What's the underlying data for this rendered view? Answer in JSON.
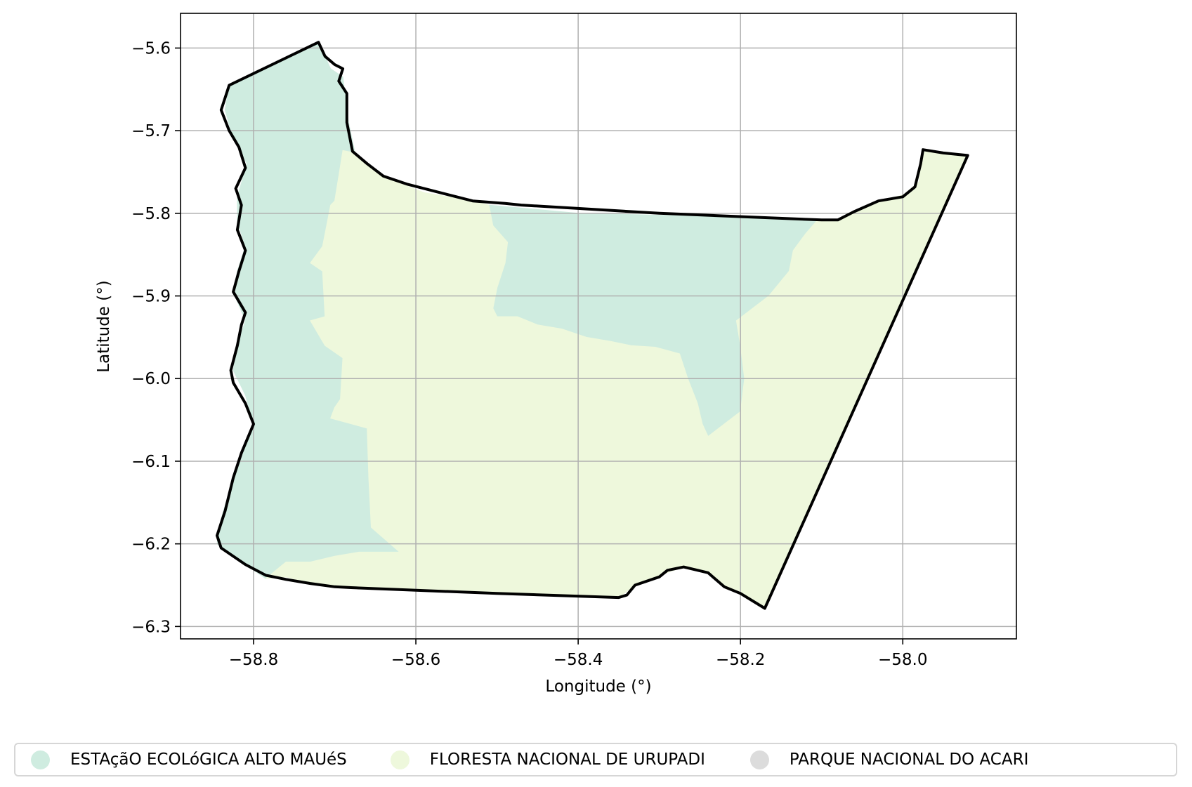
{
  "chart_data": {
    "type": "map",
    "xlabel": "Longitude (°)",
    "ylabel": "Latitude (°)",
    "xlim": [
      -58.89,
      -57.86
    ],
    "ylim": [
      -6.315,
      -5.558
    ],
    "x_ticks": [
      -58.8,
      -58.6,
      -58.4,
      -58.2,
      -58.0
    ],
    "x_tick_labels": [
      "−58.8",
      "−58.6",
      "−58.4",
      "−58.2",
      "−58.0"
    ],
    "y_ticks": [
      -5.6,
      -5.7,
      -5.8,
      -5.9,
      -6.0,
      -6.1,
      -6.2,
      -6.3
    ],
    "y_tick_labels": [
      "−5.6",
      "−5.7",
      "−5.8",
      "−5.9",
      "−6.0",
      "−6.1",
      "−6.2",
      "−6.3"
    ],
    "grid": true,
    "legend_position": "bottom",
    "regions": [
      {
        "name": "ESTAçãO ECOLóGICA ALTO MAUéS",
        "color": "#cfece0",
        "polygons": [
          [
            [
              -58.83,
              -5.645
            ],
            [
              -58.72,
              -5.593
            ],
            [
              -58.705,
              -5.625
            ],
            [
              -58.69,
              -5.635
            ],
            [
              -58.683,
              -5.69
            ],
            [
              -58.675,
              -5.727
            ],
            [
              -58.69,
              -5.724
            ],
            [
              -58.695,
              -5.755
            ],
            [
              -58.7,
              -5.785
            ],
            [
              -58.705,
              -5.79
            ],
            [
              -58.71,
              -5.815
            ],
            [
              -58.715,
              -5.84
            ],
            [
              -58.73,
              -5.86
            ],
            [
              -58.715,
              -5.87
            ],
            [
              -58.712,
              -5.925
            ],
            [
              -58.73,
              -5.93
            ],
            [
              -58.712,
              -5.96
            ],
            [
              -58.69,
              -5.975
            ],
            [
              -58.693,
              -6.025
            ],
            [
              -58.7,
              -6.035
            ],
            [
              -58.705,
              -6.048
            ],
            [
              -58.66,
              -6.06
            ],
            [
              -58.658,
              -6.12
            ],
            [
              -58.655,
              -6.18
            ],
            [
              -58.62,
              -6.21
            ],
            [
              -58.67,
              -6.21
            ],
            [
              -58.7,
              -6.215
            ],
            [
              -58.73,
              -6.222
            ],
            [
              -58.76,
              -6.222
            ],
            [
              -58.785,
              -6.242
            ],
            [
              -58.81,
              -6.225
            ],
            [
              -58.845,
              -6.2
            ],
            [
              -58.84,
              -6.17
            ],
            [
              -58.825,
              -6.12
            ],
            [
              -58.81,
              -6.08
            ],
            [
              -58.8,
              -6.055
            ],
            [
              -58.81,
              -6.02
            ],
            [
              -58.825,
              -5.99
            ],
            [
              -58.82,
              -5.96
            ],
            [
              -58.81,
              -5.93
            ],
            [
              -58.825,
              -5.895
            ],
            [
              -58.82,
              -5.87
            ],
            [
              -58.81,
              -5.84
            ],
            [
              -58.82,
              -5.81
            ],
            [
              -58.82,
              -5.78
            ],
            [
              -58.808,
              -5.74
            ],
            [
              -58.825,
              -5.71
            ],
            [
              -58.835,
              -5.675
            ]
          ],
          [
            [
              -58.51,
              -5.79
            ],
            [
              -58.4,
              -5.8
            ],
            [
              -58.27,
              -5.803
            ],
            [
              -58.105,
              -5.808
            ],
            [
              -58.12,
              -5.825
            ],
            [
              -58.135,
              -5.845
            ],
            [
              -58.14,
              -5.87
            ],
            [
              -58.165,
              -5.9
            ],
            [
              -58.185,
              -5.915
            ],
            [
              -58.205,
              -5.93
            ],
            [
              -58.2,
              -5.96
            ],
            [
              -58.195,
              -6.0
            ],
            [
              -58.2,
              -6.04
            ],
            [
              -58.24,
              -6.07
            ],
            [
              -58.247,
              -6.055
            ],
            [
              -58.253,
              -6.03
            ],
            [
              -58.265,
              -6.0
            ],
            [
              -58.275,
              -5.97
            ],
            [
              -58.305,
              -5.962
            ],
            [
              -58.335,
              -5.96
            ],
            [
              -58.36,
              -5.955
            ],
            [
              -58.39,
              -5.95
            ],
            [
              -58.42,
              -5.94
            ],
            [
              -58.45,
              -5.935
            ],
            [
              -58.475,
              -5.925
            ],
            [
              -58.5,
              -5.925
            ],
            [
              -58.505,
              -5.915
            ],
            [
              -58.5,
              -5.89
            ],
            [
              -58.49,
              -5.86
            ],
            [
              -58.487,
              -5.835
            ],
            [
              -58.505,
              -5.815
            ]
          ]
        ]
      },
      {
        "name": "FLORESTA NACIONAL DE URUPADI",
        "color": "#eef8dc",
        "polygons": [
          [
            [
              -58.675,
              -5.727
            ],
            [
              -58.64,
              -5.756
            ],
            [
              -58.59,
              -5.775
            ],
            [
              -58.53,
              -5.785
            ],
            [
              -58.51,
              -5.79
            ],
            [
              -58.505,
              -5.815
            ],
            [
              -58.487,
              -5.835
            ],
            [
              -58.49,
              -5.86
            ],
            [
              -58.5,
              -5.89
            ],
            [
              -58.505,
              -5.915
            ],
            [
              -58.5,
              -5.925
            ],
            [
              -58.475,
              -5.925
            ],
            [
              -58.45,
              -5.935
            ],
            [
              -58.42,
              -5.94
            ],
            [
              -58.39,
              -5.95
            ],
            [
              -58.36,
              -5.955
            ],
            [
              -58.335,
              -5.96
            ],
            [
              -58.305,
              -5.962
            ],
            [
              -58.275,
              -5.97
            ],
            [
              -58.265,
              -6.0
            ],
            [
              -58.253,
              -6.03
            ],
            [
              -58.247,
              -6.055
            ],
            [
              -58.24,
              -6.07
            ],
            [
              -58.2,
              -6.04
            ],
            [
              -58.195,
              -6.0
            ],
            [
              -58.2,
              -5.96
            ],
            [
              -58.205,
              -5.93
            ],
            [
              -58.185,
              -5.915
            ],
            [
              -58.165,
              -5.9
            ],
            [
              -58.14,
              -5.87
            ],
            [
              -58.135,
              -5.845
            ],
            [
              -58.12,
              -5.825
            ],
            [
              -58.105,
              -5.808
            ],
            [
              -58.09,
              -5.81
            ],
            [
              -58.06,
              -5.8
            ],
            [
              -58.03,
              -5.785
            ],
            [
              -58.0,
              -5.778
            ],
            [
              -57.98,
              -5.762
            ],
            [
              -57.975,
              -5.723
            ],
            [
              -57.95,
              -5.726
            ],
            [
              -57.92,
              -5.73
            ],
            [
              -58.17,
              -6.278
            ],
            [
              -58.2,
              -6.26
            ],
            [
              -58.22,
              -6.252
            ],
            [
              -58.24,
              -6.235
            ],
            [
              -58.27,
              -6.228
            ],
            [
              -58.3,
              -6.238
            ],
            [
              -58.33,
              -6.25
            ],
            [
              -58.35,
              -6.265
            ],
            [
              -58.5,
              -6.26
            ],
            [
              -58.68,
              -6.253
            ],
            [
              -58.73,
              -6.248
            ],
            [
              -58.76,
              -6.24
            ],
            [
              -58.785,
              -6.242
            ],
            [
              -58.76,
              -6.222
            ],
            [
              -58.73,
              -6.222
            ],
            [
              -58.7,
              -6.215
            ],
            [
              -58.67,
              -6.21
            ],
            [
              -58.62,
              -6.21
            ],
            [
              -58.655,
              -6.18
            ],
            [
              -58.658,
              -6.12
            ],
            [
              -58.66,
              -6.06
            ],
            [
              -58.705,
              -6.048
            ],
            [
              -58.7,
              -6.035
            ],
            [
              -58.693,
              -6.025
            ],
            [
              -58.69,
              -5.975
            ],
            [
              -58.712,
              -5.96
            ],
            [
              -58.73,
              -5.93
            ],
            [
              -58.712,
              -5.925
            ],
            [
              -58.715,
              -5.87
            ],
            [
              -58.73,
              -5.86
            ],
            [
              -58.715,
              -5.84
            ],
            [
              -58.71,
              -5.815
            ],
            [
              -58.705,
              -5.79
            ],
            [
              -58.7,
              -5.785
            ],
            [
              -58.695,
              -5.755
            ],
            [
              -58.69,
              -5.724
            ]
          ]
        ]
      },
      {
        "name": "PARQUE NACIONAL DO ACARI",
        "color": "#dcdcdc",
        "polygons": []
      }
    ],
    "outline": [
      [
        -58.83,
        -5.645
      ],
      [
        -58.72,
        -5.593
      ],
      [
        -58.712,
        -5.61
      ],
      [
        -58.7,
        -5.62
      ],
      [
        -58.69,
        -5.625
      ],
      [
        -58.695,
        -5.64
      ],
      [
        -58.685,
        -5.655
      ],
      [
        -58.685,
        -5.69
      ],
      [
        -58.678,
        -5.725
      ],
      [
        -58.66,
        -5.74
      ],
      [
        -58.64,
        -5.755
      ],
      [
        -58.61,
        -5.765
      ],
      [
        -58.57,
        -5.775
      ],
      [
        -58.53,
        -5.785
      ],
      [
        -58.49,
        -5.788
      ],
      [
        -58.47,
        -5.79
      ],
      [
        -58.3,
        -5.8
      ],
      [
        -58.1,
        -5.808
      ],
      [
        -58.08,
        -5.808
      ],
      [
        -58.06,
        -5.798
      ],
      [
        -58.03,
        -5.785
      ],
      [
        -58.0,
        -5.78
      ],
      [
        -57.985,
        -5.768
      ],
      [
        -57.978,
        -5.74
      ],
      [
        -57.975,
        -5.723
      ],
      [
        -57.95,
        -5.727
      ],
      [
        -57.92,
        -5.73
      ],
      [
        -58.17,
        -6.278
      ],
      [
        -58.2,
        -6.26
      ],
      [
        -58.22,
        -6.252
      ],
      [
        -58.24,
        -6.235
      ],
      [
        -58.27,
        -6.228
      ],
      [
        -58.29,
        -6.232
      ],
      [
        -58.3,
        -6.24
      ],
      [
        -58.33,
        -6.25
      ],
      [
        -58.34,
        -6.262
      ],
      [
        -58.35,
        -6.265
      ],
      [
        -58.5,
        -6.26
      ],
      [
        -58.68,
        -6.253
      ],
      [
        -58.7,
        -6.252
      ],
      [
        -58.73,
        -6.248
      ],
      [
        -58.76,
        -6.243
      ],
      [
        -58.785,
        -6.238
      ],
      [
        -58.81,
        -6.225
      ],
      [
        -58.84,
        -6.205
      ],
      [
        -58.845,
        -6.19
      ],
      [
        -58.835,
        -6.16
      ],
      [
        -58.825,
        -6.12
      ],
      [
        -58.815,
        -6.09
      ],
      [
        -58.8,
        -6.055
      ],
      [
        -58.81,
        -6.03
      ],
      [
        -58.825,
        -6.005
      ],
      [
        -58.828,
        -5.99
      ],
      [
        -58.82,
        -5.96
      ],
      [
        -58.815,
        -5.935
      ],
      [
        -58.81,
        -5.92
      ],
      [
        -58.825,
        -5.895
      ],
      [
        -58.818,
        -5.87
      ],
      [
        -58.81,
        -5.845
      ],
      [
        -58.82,
        -5.82
      ],
      [
        -58.815,
        -5.79
      ],
      [
        -58.822,
        -5.77
      ],
      [
        -58.81,
        -5.745
      ],
      [
        -58.818,
        -5.72
      ],
      [
        -58.83,
        -5.7
      ],
      [
        -58.84,
        -5.675
      ]
    ]
  }
}
